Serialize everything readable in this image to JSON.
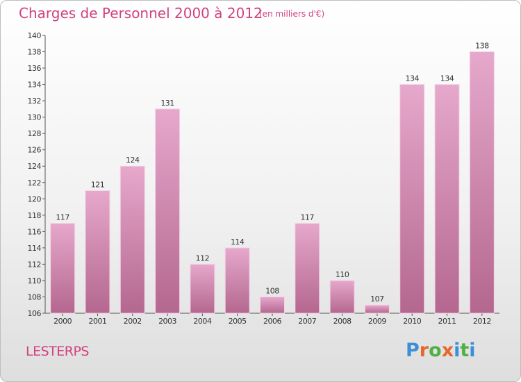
{
  "title": "Charges de Personnel 2000 à 2012",
  "subtitle": "(en milliers d'€)",
  "commune": "LESTERPS",
  "logo": {
    "text": "Proxiti",
    "colors": [
      "#3b8fd6",
      "#e8672a",
      "#4fb046",
      "#e8672a",
      "#3b8fd6",
      "#4fb046",
      "#3b8fd6"
    ]
  },
  "colors": {
    "bar_top": "#e6a8cc",
    "bar_bottom": "#b4678f",
    "title": "#d2417e",
    "label": "#333333"
  },
  "chart_data": {
    "type": "bar",
    "categories": [
      "2000",
      "2001",
      "2002",
      "2003",
      "2004",
      "2005",
      "2006",
      "2007",
      "2008",
      "2009",
      "2010",
      "2011",
      "2012"
    ],
    "values": [
      117,
      121,
      124,
      131,
      112,
      114,
      108,
      117,
      110,
      107,
      134,
      134,
      138
    ],
    "ylim": [
      106,
      140
    ],
    "yticks": [
      106,
      108,
      110,
      112,
      114,
      116,
      118,
      120,
      122,
      124,
      126,
      128,
      130,
      132,
      134,
      136,
      138,
      140
    ],
    "grid": false,
    "legend": "none"
  }
}
